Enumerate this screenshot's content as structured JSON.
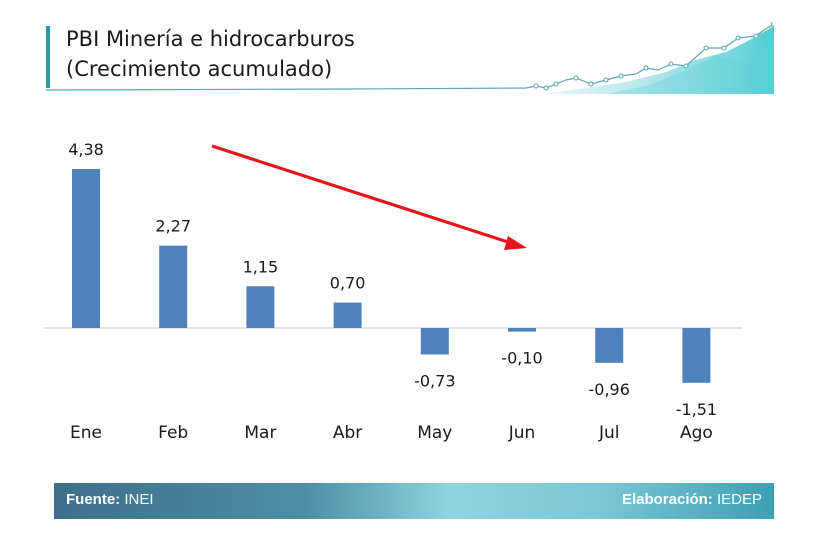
{
  "header": {
    "title_line1": "PBI Minería e hidrocarburos",
    "title_line2": "(Crecimiento acumulado)"
  },
  "chart_data": {
    "type": "bar",
    "categories": [
      "Ene",
      "Feb",
      "Mar",
      "Abr",
      "May",
      "Jun",
      "Jul",
      "Ago"
    ],
    "values": [
      4.38,
      2.27,
      1.15,
      0.7,
      -0.73,
      -0.1,
      -0.96,
      -1.51
    ],
    "value_labels": [
      "4,38",
      "2,27",
      "1,15",
      "0,70",
      "-0,73",
      "-0,10",
      "-0,96",
      "-1,51"
    ],
    "annotation": "red downward trend arrow",
    "colors": {
      "bar": "#4f81bd",
      "arrow": "#e8141c",
      "axis": "#cfcfcf"
    }
  },
  "footer": {
    "source_label": "Fuente:",
    "source_value": "INEI",
    "credit_label": "Elaboración:",
    "credit_value": "IEDEP"
  }
}
